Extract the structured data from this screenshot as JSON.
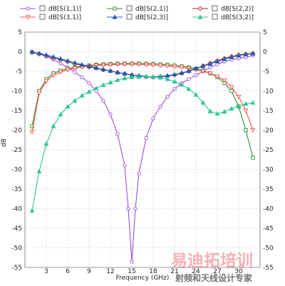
{
  "chart_data": {
    "type": "line",
    "title": "",
    "xlabel": "Frequency (GHz)",
    "ylabel": "dB",
    "xlim": [
      0,
      33
    ],
    "ylim": [
      -55,
      5
    ],
    "x_ticks": [
      3,
      6,
      9,
      12,
      15,
      18,
      21,
      24,
      27,
      30
    ],
    "y_ticks": [
      5,
      0,
      -5,
      -10,
      -15,
      -20,
      -25,
      -30,
      -35,
      -40,
      -45,
      -50,
      -55
    ],
    "grid": true,
    "legend_position": "top",
    "series": [
      {
        "name": "dB[S(1,1)]",
        "color": "#9c4fd8",
        "marker": "circle",
        "points": [
          [
            1,
            0
          ],
          [
            2,
            -0.5
          ],
          [
            3,
            -1.2
          ],
          [
            4,
            -2
          ],
          [
            5,
            -3
          ],
          [
            6,
            -4
          ],
          [
            7,
            -5.2
          ],
          [
            8,
            -6.5
          ],
          [
            9,
            -8
          ],
          [
            10,
            -10
          ],
          [
            11,
            -12.5
          ],
          [
            12,
            -16
          ],
          [
            13,
            -21
          ],
          [
            14,
            -29
          ],
          [
            14.5,
            -40
          ],
          [
            15,
            -53.5
          ],
          [
            15.5,
            -40
          ],
          [
            16,
            -31
          ],
          [
            17,
            -22
          ],
          [
            18,
            -17
          ],
          [
            19,
            -14
          ],
          [
            20,
            -11.5
          ],
          [
            21,
            -9.5
          ],
          [
            22,
            -8
          ],
          [
            23,
            -7
          ],
          [
            24,
            -6
          ],
          [
            25,
            -5
          ],
          [
            26,
            -4
          ],
          [
            27,
            -3.2
          ],
          [
            28,
            -2.5
          ],
          [
            29,
            -2
          ],
          [
            30,
            -1.7
          ],
          [
            31,
            -1.4
          ],
          [
            32,
            -1
          ]
        ]
      },
      {
        "name": "dB[S(2,1)]",
        "color": "#2e8b2e",
        "marker": "square",
        "points": [
          [
            1,
            -19
          ],
          [
            2,
            -10
          ],
          [
            3,
            -7
          ],
          [
            4,
            -5.5
          ],
          [
            5,
            -4.8
          ],
          [
            6,
            -4.3
          ],
          [
            7,
            -4
          ],
          [
            8,
            -3.7
          ],
          [
            9,
            -3.5
          ],
          [
            10,
            -3.3
          ],
          [
            11,
            -3.2
          ],
          [
            12,
            -3.1
          ],
          [
            13,
            -3.05
          ],
          [
            14,
            -3
          ],
          [
            15,
            -3
          ],
          [
            16,
            -3
          ],
          [
            17,
            -3.05
          ],
          [
            18,
            -3.1
          ],
          [
            19,
            -3.2
          ],
          [
            20,
            -3.3
          ],
          [
            21,
            -3.5
          ],
          [
            22,
            -3.7
          ],
          [
            23,
            -4
          ],
          [
            24,
            -4.3
          ],
          [
            25,
            -4.8
          ],
          [
            26,
            -5.5
          ],
          [
            27,
            -6.5
          ],
          [
            28,
            -8
          ],
          [
            29,
            -10
          ],
          [
            30,
            -14
          ],
          [
            31,
            -20
          ],
          [
            32,
            -27
          ]
        ]
      },
      {
        "name": "dB[S(2,2)]",
        "color": "#a52a2a",
        "marker": "diamond",
        "points": [
          [
            1,
            -0.1
          ],
          [
            2,
            -0.6
          ],
          [
            3,
            -1.1
          ],
          [
            4,
            -1.6
          ],
          [
            5,
            -2.1
          ],
          [
            6,
            -2.6
          ],
          [
            7,
            -3.1
          ],
          [
            8,
            -3.5
          ],
          [
            9,
            -3.9
          ],
          [
            10,
            -4.2
          ],
          [
            11,
            -4.6
          ],
          [
            12,
            -4.9
          ],
          [
            13,
            -5.3
          ],
          [
            14,
            -5.6
          ],
          [
            15,
            -5.9
          ],
          [
            16,
            -6.2
          ],
          [
            17,
            -6.4
          ],
          [
            18,
            -6.5
          ],
          [
            19,
            -6.4
          ],
          [
            20,
            -6.2
          ],
          [
            21,
            -5.9
          ],
          [
            22,
            -5.5
          ],
          [
            23,
            -5
          ],
          [
            24,
            -4.3
          ],
          [
            25,
            -3.6
          ],
          [
            26,
            -2.9
          ],
          [
            27,
            -2.3
          ],
          [
            28,
            -1.7
          ],
          [
            29,
            -1.2
          ],
          [
            30,
            -0.8
          ],
          [
            31,
            -0.6
          ],
          [
            32,
            -0.4
          ]
        ]
      },
      {
        "name": "dB[S(3,1)]",
        "color": "#ff4d4d",
        "marker": "triangle-down",
        "points": [
          [
            1,
            -20.5
          ],
          [
            2,
            -10.5
          ],
          [
            3,
            -7.5
          ],
          [
            4,
            -6
          ],
          [
            5,
            -5.2
          ],
          [
            6,
            -4.6
          ],
          [
            7,
            -4.2
          ],
          [
            8,
            -3.9
          ],
          [
            9,
            -3.7
          ],
          [
            10,
            -3.5
          ],
          [
            11,
            -3.4
          ],
          [
            12,
            -3.3
          ],
          [
            13,
            -3.2
          ],
          [
            14,
            -3.2
          ],
          [
            15,
            -3.2
          ],
          [
            16,
            -3.2
          ],
          [
            17,
            -3.3
          ],
          [
            18,
            -3.4
          ],
          [
            19,
            -3.5
          ],
          [
            20,
            -3.6
          ],
          [
            21,
            -3.8
          ],
          [
            22,
            -4
          ],
          [
            23,
            -4.2
          ],
          [
            24,
            -4.6
          ],
          [
            25,
            -5
          ],
          [
            26,
            -5.5
          ],
          [
            27,
            -6.3
          ],
          [
            28,
            -7.3
          ],
          [
            29,
            -9
          ],
          [
            30,
            -11.5
          ],
          [
            31,
            -15
          ],
          [
            32,
            -20
          ]
        ]
      },
      {
        "name": "dB[S(2,3)]",
        "color": "#1e5bb8",
        "marker": "triangle-up",
        "points": [
          [
            1,
            -0.1
          ],
          [
            2,
            -0.4
          ],
          [
            3,
            -0.8
          ],
          [
            4,
            -1.3
          ],
          [
            5,
            -1.8
          ],
          [
            6,
            -2.3
          ],
          [
            7,
            -2.8
          ],
          [
            8,
            -3.3
          ],
          [
            9,
            -3.7
          ],
          [
            10,
            -4.1
          ],
          [
            11,
            -4.5
          ],
          [
            12,
            -4.9
          ],
          [
            13,
            -5.3
          ],
          [
            14,
            -5.6
          ],
          [
            15,
            -5.9
          ],
          [
            16,
            -6.1
          ],
          [
            17,
            -6.3
          ],
          [
            18,
            -6.4
          ],
          [
            19,
            -6.3
          ],
          [
            20,
            -6.1
          ],
          [
            21,
            -5.8
          ],
          [
            22,
            -5.4
          ],
          [
            23,
            -4.9
          ],
          [
            24,
            -4.3
          ],
          [
            25,
            -3.7
          ],
          [
            26,
            -3.1
          ],
          [
            27,
            -2.5
          ],
          [
            28,
            -1.9
          ],
          [
            29,
            -1.4
          ],
          [
            30,
            -1
          ],
          [
            31,
            -0.7
          ],
          [
            32,
            -0.5
          ]
        ]
      },
      {
        "name": "dB[S(3,2)]",
        "color": "#2ec49a",
        "marker": "triangle-up",
        "points": [
          [
            1,
            -40.5
          ],
          [
            2,
            -30.5
          ],
          [
            3,
            -23.5
          ],
          [
            4,
            -19
          ],
          [
            5,
            -16
          ],
          [
            6,
            -14
          ],
          [
            7,
            -12.5
          ],
          [
            8,
            -11.2
          ],
          [
            9,
            -10.2
          ],
          [
            10,
            -9.3
          ],
          [
            11,
            -8.5
          ],
          [
            12,
            -7.8
          ],
          [
            13,
            -7.2
          ],
          [
            14,
            -6.8
          ],
          [
            15,
            -6.5
          ],
          [
            16,
            -6.4
          ],
          [
            17,
            -6.3
          ],
          [
            18,
            -6.4
          ],
          [
            19,
            -6.6
          ],
          [
            20,
            -7
          ],
          [
            21,
            -7.6
          ],
          [
            22,
            -8.4
          ],
          [
            23,
            -9.5
          ],
          [
            24,
            -11
          ],
          [
            25,
            -13
          ],
          [
            26,
            -15.2
          ],
          [
            27,
            -15.8
          ],
          [
            28,
            -15.3
          ],
          [
            29,
            -14.5
          ],
          [
            30,
            -13.8
          ],
          [
            31,
            -13.3
          ],
          [
            32,
            -13
          ]
        ]
      }
    ]
  },
  "watermark": {
    "main_text": "易迪拓培训",
    "sub_text": "射频和天线设计专家"
  }
}
